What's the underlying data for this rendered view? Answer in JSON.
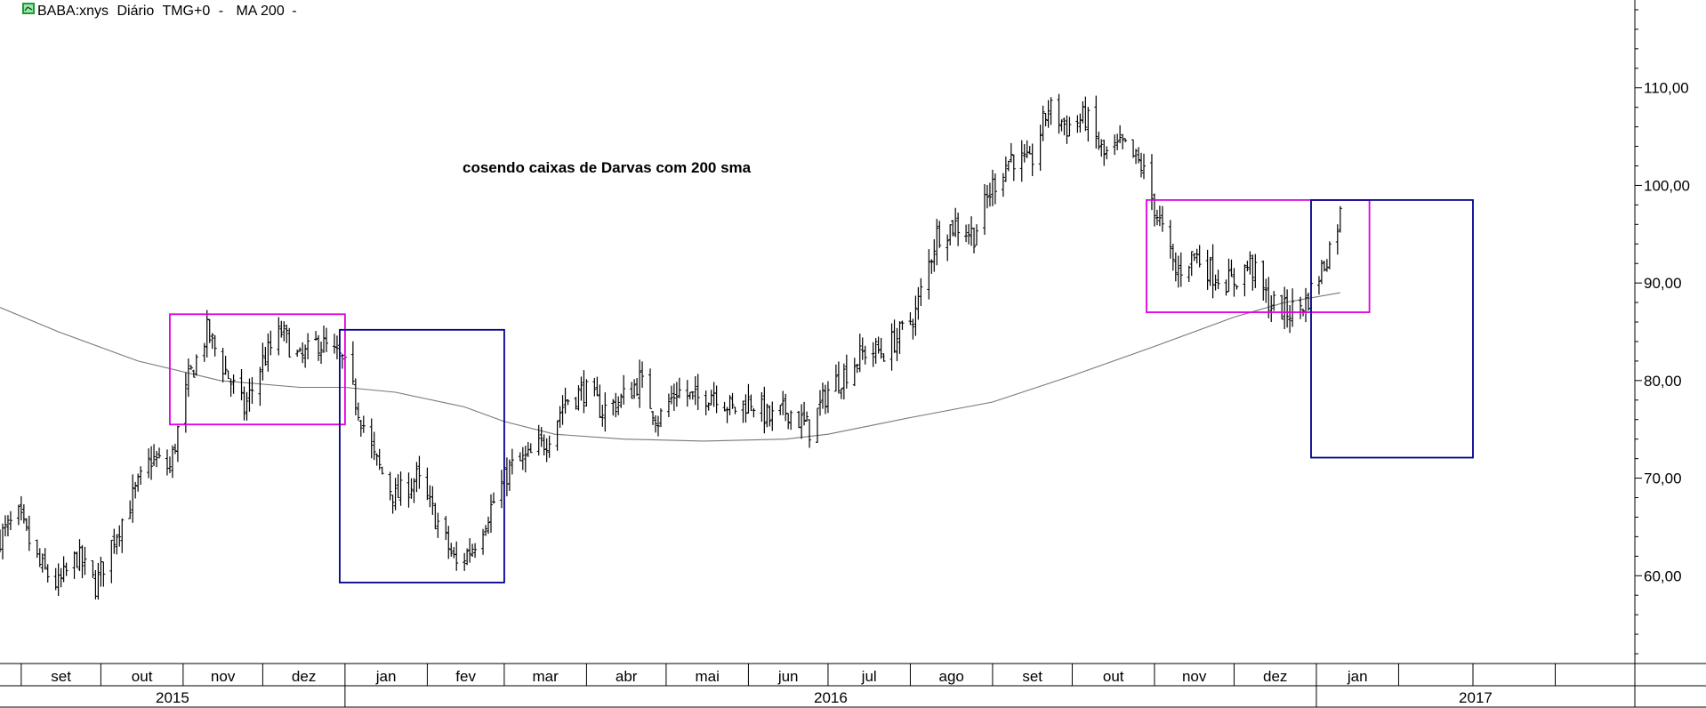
{
  "header": {
    "symbol": "BABA:xnys",
    "period": "Diário",
    "timezone": "TMG+0",
    "indicator": "MA 200",
    "icon": "green-chart-icon"
  },
  "chart_data": {
    "type": "candlestick",
    "annotation": "cosendo caixas de Darvas com 200 sma",
    "y_axis": {
      "ticks": [
        "60,00",
        "70,00",
        "80,00",
        "90,00",
        "100,00",
        "110,00"
      ],
      "tick_values": [
        60,
        70,
        80,
        90,
        100,
        110
      ],
      "range": [
        51,
        119
      ],
      "position": "right"
    },
    "x_axis": {
      "months": [
        "set",
        "out",
        "nov",
        "dez",
        "jan",
        "fev",
        "mar",
        "abr",
        "mai",
        "jun",
        "jul",
        "ago",
        "set",
        "out",
        "nov",
        "dez",
        "jan",
        "",
        "",
        ""
      ],
      "month_starts": [
        "2015-09-01",
        "2015-10-01",
        "2015-11-01",
        "2015-12-01",
        "2016-01-01",
        "2016-02-01",
        "2016-03-01",
        "2016-04-01",
        "2016-05-01",
        "2016-06-01",
        "2016-07-01",
        "2016-08-01",
        "2016-09-01",
        "2016-10-01",
        "2016-11-01",
        "2016-12-01",
        "2017-01-01",
        "2017-02-01",
        "2017-03-01",
        "2017-04-01"
      ],
      "years": [
        {
          "label": "2015",
          "start": "2015-08-24",
          "end": "2016-01-01"
        },
        {
          "label": "2016",
          "start": "2016-01-01",
          "end": "2017-01-01"
        },
        {
          "label": "2017",
          "start": "2017-01-01",
          "end": "2017-05-01"
        }
      ],
      "range": [
        "2015-08-24",
        "2017-05-01"
      ]
    },
    "price_anchors": [
      {
        "date": "2015-08-24",
        "price": 64
      },
      {
        "date": "2015-08-31",
        "price": 66
      },
      {
        "date": "2015-09-08",
        "price": 61
      },
      {
        "date": "2015-09-15",
        "price": 59
      },
      {
        "date": "2015-09-22",
        "price": 62
      },
      {
        "date": "2015-09-29",
        "price": 59
      },
      {
        "date": "2015-10-06",
        "price": 64
      },
      {
        "date": "2015-10-13",
        "price": 68
      },
      {
        "date": "2015-10-20",
        "price": 72
      },
      {
        "date": "2015-10-27",
        "price": 71
      },
      {
        "date": "2015-11-03",
        "price": 80
      },
      {
        "date": "2015-11-10",
        "price": 85
      },
      {
        "date": "2015-11-17",
        "price": 81
      },
      {
        "date": "2015-11-24",
        "price": 77
      },
      {
        "date": "2015-12-01",
        "price": 82
      },
      {
        "date": "2015-12-08",
        "price": 85
      },
      {
        "date": "2015-12-15",
        "price": 82
      },
      {
        "date": "2015-12-22",
        "price": 84
      },
      {
        "date": "2015-12-31",
        "price": 82
      },
      {
        "date": "2016-01-05",
        "price": 78
      },
      {
        "date": "2016-01-12",
        "price": 72
      },
      {
        "date": "2016-01-20",
        "price": 68
      },
      {
        "date": "2016-01-28",
        "price": 70
      },
      {
        "date": "2016-02-04",
        "price": 66
      },
      {
        "date": "2016-02-12",
        "price": 61
      },
      {
        "date": "2016-02-18",
        "price": 63
      },
      {
        "date": "2016-02-25",
        "price": 67
      },
      {
        "date": "2016-03-03",
        "price": 71
      },
      {
        "date": "2016-03-10",
        "price": 72
      },
      {
        "date": "2016-03-17",
        "price": 74
      },
      {
        "date": "2016-03-24",
        "price": 78
      },
      {
        "date": "2016-03-31",
        "price": 79
      },
      {
        "date": "2016-04-07",
        "price": 77
      },
      {
        "date": "2016-04-14",
        "price": 78
      },
      {
        "date": "2016-04-21",
        "price": 80
      },
      {
        "date": "2016-04-28",
        "price": 76
      },
      {
        "date": "2016-05-05",
        "price": 79
      },
      {
        "date": "2016-05-12",
        "price": 78
      },
      {
        "date": "2016-05-19",
        "price": 79
      },
      {
        "date": "2016-05-26",
        "price": 77
      },
      {
        "date": "2016-06-02",
        "price": 78
      },
      {
        "date": "2016-06-09",
        "price": 76
      },
      {
        "date": "2016-06-16",
        "price": 77
      },
      {
        "date": "2016-06-24",
        "price": 75
      },
      {
        "date": "2016-07-01",
        "price": 79
      },
      {
        "date": "2016-07-08",
        "price": 81
      },
      {
        "date": "2016-07-15",
        "price": 83
      },
      {
        "date": "2016-07-22",
        "price": 83
      },
      {
        "date": "2016-07-29",
        "price": 85
      },
      {
        "date": "2016-08-03",
        "price": 87
      },
      {
        "date": "2016-08-11",
        "price": 95
      },
      {
        "date": "2016-08-18",
        "price": 96
      },
      {
        "date": "2016-08-25",
        "price": 95
      },
      {
        "date": "2016-09-01",
        "price": 100
      },
      {
        "date": "2016-09-08",
        "price": 103
      },
      {
        "date": "2016-09-15",
        "price": 102
      },
      {
        "date": "2016-09-22",
        "price": 108
      },
      {
        "date": "2016-09-29",
        "price": 106
      },
      {
        "date": "2016-10-06",
        "price": 107
      },
      {
        "date": "2016-10-13",
        "price": 103
      },
      {
        "date": "2016-10-20",
        "price": 104
      },
      {
        "date": "2016-10-27",
        "price": 102
      },
      {
        "date": "2016-11-02",
        "price": 97
      },
      {
        "date": "2016-11-09",
        "price": 91
      },
      {
        "date": "2016-11-16",
        "price": 93
      },
      {
        "date": "2016-11-23",
        "price": 91
      },
      {
        "date": "2016-11-30",
        "price": 90
      },
      {
        "date": "2016-12-07",
        "price": 92
      },
      {
        "date": "2016-12-14",
        "price": 88
      },
      {
        "date": "2016-12-21",
        "price": 87
      },
      {
        "date": "2016-12-28",
        "price": 88
      },
      {
        "date": "2017-01-04",
        "price": 92
      },
      {
        "date": "2017-01-10",
        "price": 97
      }
    ],
    "ma200": [
      {
        "date": "2015-08-24",
        "value": 87.5
      },
      {
        "date": "2015-09-15",
        "value": 85
      },
      {
        "date": "2015-10-15",
        "value": 82
      },
      {
        "date": "2015-11-15",
        "value": 80
      },
      {
        "date": "2015-12-15",
        "value": 79.3
      },
      {
        "date": "2016-01-01",
        "value": 79.3
      },
      {
        "date": "2016-01-20",
        "value": 78.8
      },
      {
        "date": "2016-02-15",
        "value": 77.3
      },
      {
        "date": "2016-03-01",
        "value": 75.8
      },
      {
        "date": "2016-03-20",
        "value": 74.5
      },
      {
        "date": "2016-04-15",
        "value": 74
      },
      {
        "date": "2016-05-15",
        "value": 73.8
      },
      {
        "date": "2016-06-15",
        "value": 74
      },
      {
        "date": "2016-07-01",
        "value": 74.5
      },
      {
        "date": "2016-08-01",
        "value": 76.2
      },
      {
        "date": "2016-09-01",
        "value": 77.8
      },
      {
        "date": "2016-10-01",
        "value": 80.5
      },
      {
        "date": "2016-11-01",
        "value": 83.5
      },
      {
        "date": "2016-12-01",
        "value": 86.5
      },
      {
        "date": "2016-12-20",
        "value": 88
      },
      {
        "date": "2017-01-10",
        "value": 89
      }
    ],
    "darvas_boxes": [
      {
        "color": "#e000e0",
        "start": "2015-10-27",
        "end": "2016-01-01",
        "low": 75.5,
        "high": 86.8
      },
      {
        "color": "#00008b",
        "start": "2015-12-30",
        "end": "2016-03-01",
        "low": 59.3,
        "high": 85.2
      },
      {
        "color": "#e000e0",
        "start": "2016-10-29",
        "end": "2017-01-21",
        "low": 87,
        "high": 98.5
      },
      {
        "color": "#00008b",
        "start": "2016-12-30",
        "end": "2017-03-01",
        "low": 72.1,
        "high": 98.5
      }
    ]
  }
}
